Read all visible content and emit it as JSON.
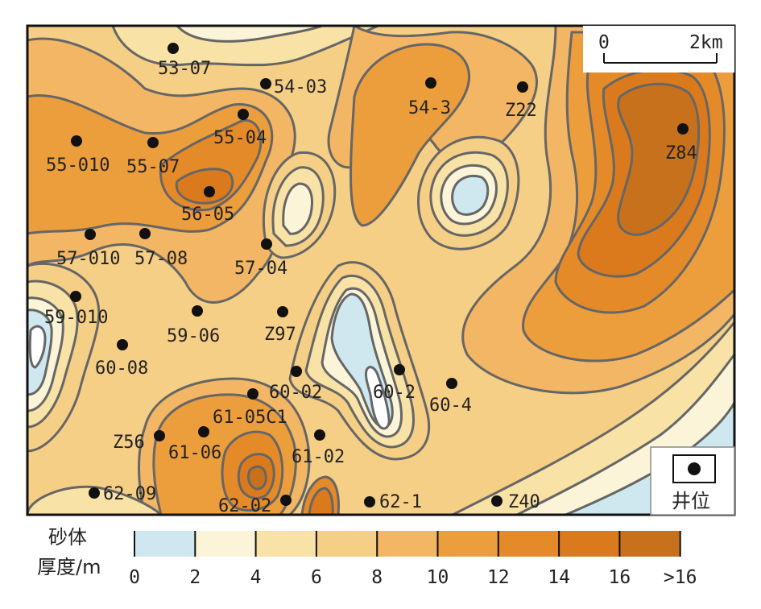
{
  "colors": {
    "c0_2": "#cfe8ef",
    "c2_4": "#fbf4d8",
    "c4_6": "#f9e2a6",
    "c6_8": "#f6cf86",
    "c8_10": "#f2b664",
    "c10_12": "#ec9e3c",
    "c12_14": "#e58a28",
    "c14_16": "#db7a1c",
    "c16_plus": "#c8711c",
    "contour": "#666666",
    "well": "#111111"
  },
  "scale_bar": {
    "start_label": "0",
    "end_label": "2km"
  },
  "well_legend": {
    "label": "井位",
    "icon": "black-dot-in-box"
  },
  "color_legend": {
    "title_line1": "砂体",
    "title_line2": "厚度/m",
    "ticks": [
      "0",
      "2",
      "4",
      "6",
      "8",
      "10",
      "12",
      "14",
      "16",
      ">16"
    ]
  },
  "wells": [
    {
      "id": "53-07"
    },
    {
      "id": "54-03"
    },
    {
      "id": "54-3"
    },
    {
      "id": "Z22"
    },
    {
      "id": "Z84"
    },
    {
      "id": "55-04"
    },
    {
      "id": "55-010"
    },
    {
      "id": "55-07"
    },
    {
      "id": "56-05"
    },
    {
      "id": "57-010"
    },
    {
      "id": "57-08"
    },
    {
      "id": "57-04"
    },
    {
      "id": "59-010"
    },
    {
      "id": "59-06"
    },
    {
      "id": "Z97"
    },
    {
      "id": "60-08"
    },
    {
      "id": "60-02"
    },
    {
      "id": "60-2"
    },
    {
      "id": "60-4"
    },
    {
      "id": "61-05C1"
    },
    {
      "id": "Z56"
    },
    {
      "id": "61-06"
    },
    {
      "id": "61-02"
    },
    {
      "id": "62-09"
    },
    {
      "id": "62-02"
    },
    {
      "id": "62-1"
    },
    {
      "id": "Z40"
    }
  ]
}
